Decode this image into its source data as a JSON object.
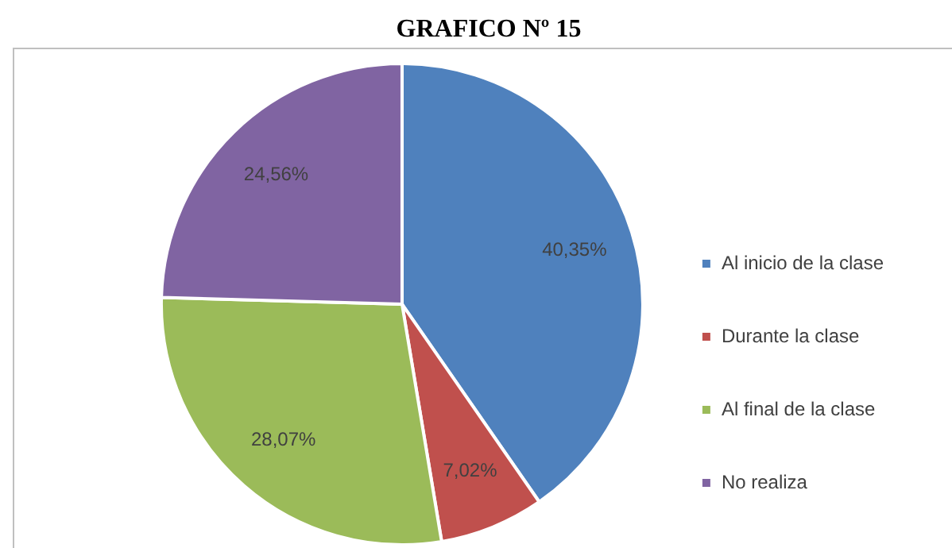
{
  "chart_data": {
    "type": "pie",
    "title": "GRAFICO Nº 15",
    "categories": [
      "Al inicio de la clase",
      "Durante la clase",
      "Al final de la clase",
      "No realiza"
    ],
    "values": [
      40.35,
      7.02,
      28.07,
      24.56
    ],
    "value_labels": [
      "40,35%",
      "7,02%",
      "28,07%",
      "24,56%"
    ],
    "colors": [
      "#4f81bd",
      "#c0504d",
      "#9bbb59",
      "#8064a2"
    ],
    "legend": "right"
  }
}
